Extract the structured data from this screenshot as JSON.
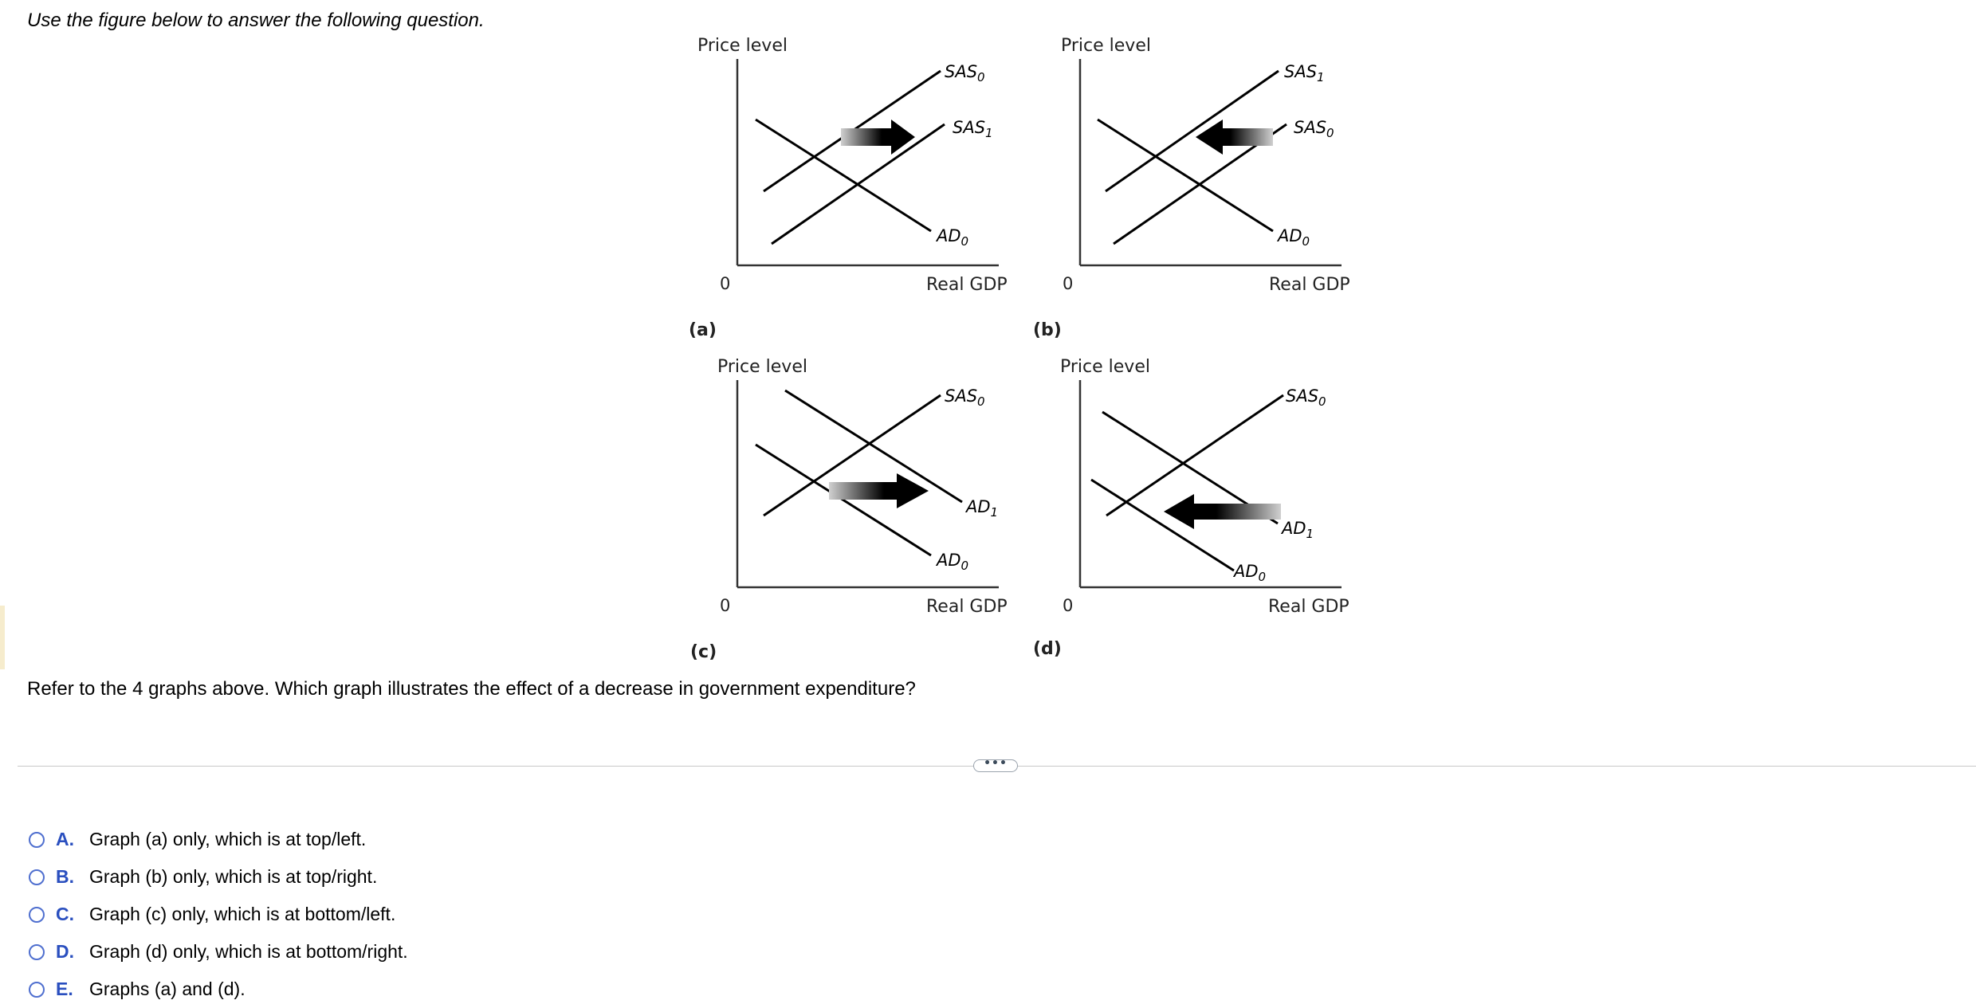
{
  "instruction": "Use the figure below to answer the following question.",
  "figure": {
    "y_axis_label": "Price level",
    "x_axis_label": "Real GDP",
    "origin": "0",
    "panels": [
      {
        "caption": "(a)",
        "curves": [
          {
            "base": "SAS",
            "sub": "0"
          },
          {
            "base": "SAS",
            "sub": "1"
          },
          {
            "base": "AD",
            "sub": "0"
          }
        ],
        "shift": "SAS shifts right"
      },
      {
        "caption": "(b)",
        "curves": [
          {
            "base": "SAS",
            "sub": "1"
          },
          {
            "base": "SAS",
            "sub": "0"
          },
          {
            "base": "AD",
            "sub": "0"
          }
        ],
        "shift": "SAS shifts left"
      },
      {
        "caption": "(c)",
        "curves": [
          {
            "base": "SAS",
            "sub": "0"
          },
          {
            "base": "AD",
            "sub": "1"
          },
          {
            "base": "AD",
            "sub": "0"
          }
        ],
        "shift": "AD shifts right"
      },
      {
        "caption": "(d)",
        "curves": [
          {
            "base": "SAS",
            "sub": "0"
          },
          {
            "base": "AD",
            "sub": "1"
          },
          {
            "base": "AD",
            "sub": "0"
          }
        ],
        "shift": "AD shifts left"
      }
    ]
  },
  "question": "Refer to the 4 graphs above. Which graph illustrates the effect of a decrease in government expenditure?",
  "expand_label": "•••",
  "options": [
    {
      "letter": "A.",
      "text": "Graph (a) only, which is at top/left."
    },
    {
      "letter": "B.",
      "text": "Graph (b) only, which is at top/right."
    },
    {
      "letter": "C.",
      "text": "Graph (c) only, which is at bottom/left."
    },
    {
      "letter": "D.",
      "text": "Graph (d) only, which is at bottom/right."
    },
    {
      "letter": "E.",
      "text": "Graphs (a) and (d)."
    }
  ],
  "colors": {
    "option_letter": "#2a4fbf",
    "radio_border": "#4f6fcf",
    "divider": "#c8c8c8"
  }
}
